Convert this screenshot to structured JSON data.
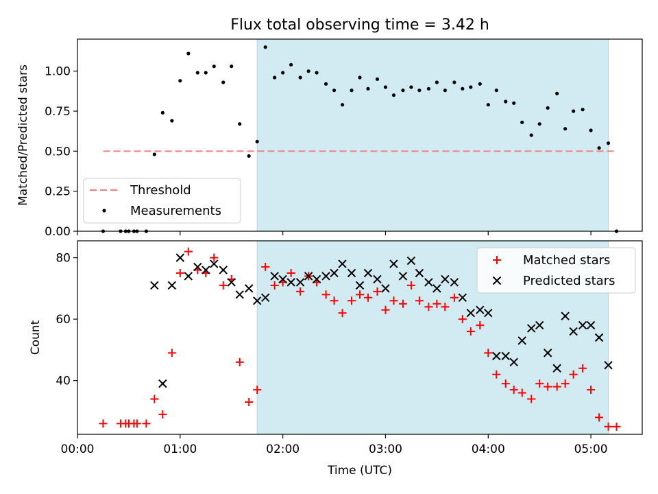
{
  "chart_data": {
    "title": "Flux total observing time = 3.42 h",
    "xlabel": "Time (UTC)",
    "x_unit": "hours UTC",
    "xlim": [
      0.0,
      5.5
    ],
    "xticks": [
      0,
      1,
      2,
      3,
      4,
      5
    ],
    "xtick_labels": [
      "00:00",
      "01:00",
      "02:00",
      "03:00",
      "04:00",
      "05:00"
    ],
    "observing_window": [
      1.75,
      5.17
    ],
    "window_color": "#add8e6",
    "panels": [
      {
        "type": "scatter",
        "ylabel": "Matched/Predicted stars",
        "ylim": [
          0.0,
          1.2
        ],
        "yticks": [
          0.0,
          0.25,
          0.5,
          0.75,
          1.0
        ],
        "ytick_labels": [
          "0.00",
          "0.25",
          "0.50",
          "0.75",
          "1.00"
        ],
        "legend_position": "lower-left",
        "threshold": {
          "name": "Threshold",
          "y": 0.5,
          "x": [
            0.25,
            5.25
          ],
          "color": "#f08080"
        },
        "series": [
          {
            "name": "Measurements",
            "marker": "dot",
            "color": "#000000",
            "x": [
              0.25,
              0.42,
              0.47,
              0.5,
              0.55,
              0.58,
              0.67,
              0.75,
              0.83,
              0.92,
              1.0,
              1.08,
              1.17,
              1.25,
              1.33,
              1.42,
              1.5,
              1.58,
              1.67,
              1.75,
              1.83,
              1.92,
              2.0,
              2.08,
              2.17,
              2.25,
              2.33,
              2.42,
              2.5,
              2.58,
              2.67,
              2.75,
              2.83,
              2.92,
              3.0,
              3.08,
              3.17,
              3.25,
              3.33,
              3.42,
              3.5,
              3.58,
              3.67,
              3.75,
              3.83,
              3.92,
              4.0,
              4.08,
              4.17,
              4.25,
              4.33,
              4.42,
              4.5,
              4.58,
              4.67,
              4.75,
              4.83,
              4.92,
              5.0,
              5.08,
              5.17,
              5.25
            ],
            "y": [
              0.0,
              0.0,
              0.0,
              0.0,
              0.0,
              0.0,
              0.0,
              0.48,
              0.74,
              0.69,
              0.94,
              1.11,
              0.99,
              0.99,
              1.03,
              0.93,
              1.03,
              0.67,
              0.47,
              0.56,
              1.15,
              0.96,
              0.99,
              1.04,
              0.96,
              1.0,
              0.99,
              0.92,
              0.88,
              0.79,
              0.88,
              0.96,
              0.89,
              0.95,
              0.9,
              0.85,
              0.88,
              0.9,
              0.88,
              0.89,
              0.93,
              0.88,
              0.93,
              0.89,
              0.9,
              0.92,
              0.79,
              0.88,
              0.81,
              0.8,
              0.68,
              0.6,
              0.67,
              0.77,
              0.86,
              0.64,
              0.75,
              0.76,
              0.63,
              0.52,
              0.55,
              0.0
            ]
          }
        ]
      },
      {
        "type": "scatter",
        "ylabel": "Count",
        "ylim": [
          22.5,
          85.5
        ],
        "yticks": [
          40,
          60,
          80
        ],
        "ytick_labels": [
          "40",
          "60",
          "80"
        ],
        "legend_position": "upper-right",
        "series": [
          {
            "name": "Matched stars",
            "marker": "plus",
            "color": "#ff0000",
            "x": [
              0.25,
              0.42,
              0.47,
              0.5,
              0.55,
              0.58,
              0.67,
              0.75,
              0.83,
              0.92,
              1.0,
              1.08,
              1.17,
              1.25,
              1.33,
              1.42,
              1.5,
              1.58,
              1.67,
              1.75,
              1.83,
              1.92,
              2.0,
              2.08,
              2.17,
              2.25,
              2.33,
              2.42,
              2.5,
              2.58,
              2.67,
              2.75,
              2.83,
              2.92,
              3.0,
              3.08,
              3.17,
              3.25,
              3.33,
              3.42,
              3.5,
              3.58,
              3.67,
              3.75,
              3.83,
              3.92,
              4.0,
              4.08,
              4.17,
              4.25,
              4.33,
              4.42,
              4.5,
              4.58,
              4.67,
              4.75,
              4.83,
              4.92,
              5.0,
              5.08,
              5.17,
              5.25
            ],
            "y": [
              26,
              26,
              26,
              26,
              26,
              26,
              26,
              34,
              29,
              49,
              75,
              82,
              76,
              75,
              80,
              71,
              73,
              46,
              33,
              37,
              77,
              71,
              72,
              75,
              69,
              74,
              72,
              68,
              66,
              62,
              66,
              68,
              67,
              69,
              63,
              66,
              65,
              71,
              66,
              64,
              65,
              64,
              67,
              60,
              56,
              58,
              49,
              42,
              39,
              37,
              36,
              34,
              39,
              38,
              38,
              39,
              42,
              44,
              37,
              28,
              25,
              25
            ]
          },
          {
            "name": "Predicted stars",
            "marker": "x",
            "color": "#000000",
            "x": [
              0.75,
              0.83,
              0.92,
              1.0,
              1.08,
              1.17,
              1.25,
              1.33,
              1.42,
              1.5,
              1.58,
              1.67,
              1.75,
              1.83,
              1.92,
              2.0,
              2.08,
              2.17,
              2.25,
              2.33,
              2.42,
              2.5,
              2.58,
              2.67,
              2.75,
              2.83,
              2.92,
              3.0,
              3.08,
              3.17,
              3.25,
              3.33,
              3.42,
              3.5,
              3.58,
              3.67,
              3.75,
              3.83,
              3.92,
              4.0,
              4.08,
              4.17,
              4.25,
              4.33,
              4.42,
              4.5,
              4.58,
              4.67,
              4.75,
              4.83,
              4.92,
              5.0,
              5.08,
              5.17
            ],
            "y": [
              71,
              39,
              71,
              80,
              74,
              77,
              76,
              78,
              76,
              72,
              68,
              70,
              66,
              67,
              74,
              73,
              72,
              72,
              74,
              73,
              74,
              75,
              78,
              75,
              71,
              75,
              73,
              70,
              78,
              74,
              79,
              75,
              72,
              70,
              73,
              72,
              67,
              62,
              63,
              62,
              48,
              48,
              46,
              53,
              57,
              58,
              49,
              44,
              61,
              56,
              58,
              58,
              54,
              45
            ]
          }
        ]
      }
    ]
  }
}
